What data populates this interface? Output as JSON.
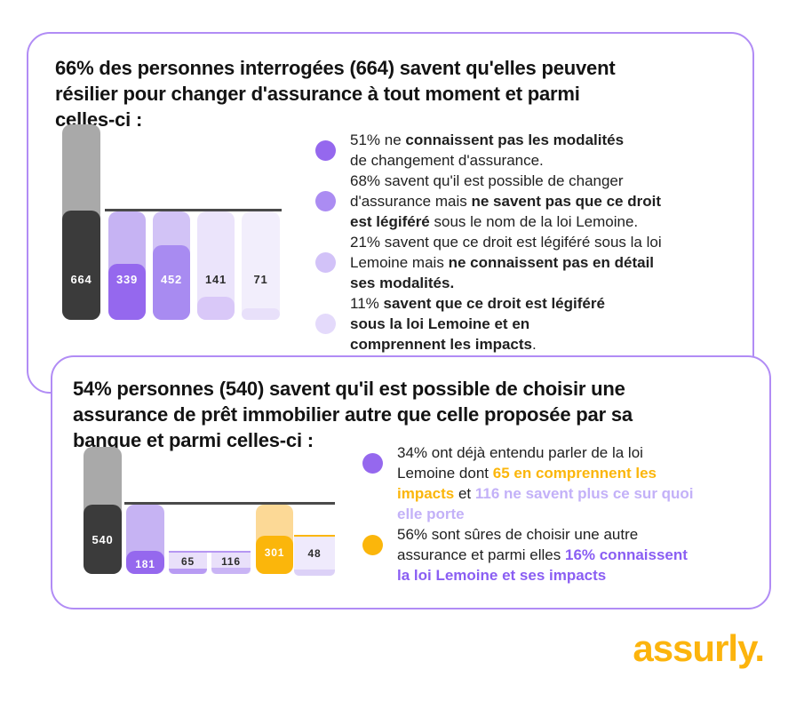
{
  "palette": {
    "card_border": "#b18cf5",
    "bar_dark": "#3b3b3b",
    "bar_gray": "#a9a9a9",
    "axis": "#4a4a4a",
    "purple_strong": "#9568ee",
    "purple_mid": "#a88bf1",
    "purple_soft": "#c6b3f3",
    "purple_soft2": "#d2c3f6",
    "purple_pale": "#ebe4fb",
    "purple_pale2": "#f2eefc",
    "strip_pale": "#d9c8f8",
    "strip_pale2": "#e8e0fa",
    "bracket_purple": "#b697f2",
    "subset_body": "#e9e0fa",
    "strip_65": "#b89bf3",
    "strip_116": "#c9b4f5",
    "body_48": "#efeafc",
    "strip_48": "#dcd1f7",
    "yellow": "#fbb60b",
    "yellow_light": "#fcd996",
    "text_orange": "#fbb60b",
    "text_lilac": "#c3b1f8",
    "text_purple": "#8a5ef3",
    "logo_yellow": "#fcb40d",
    "label_white": "#ffffff",
    "label_dark": "#2d2d2d"
  },
  "chart_data": [
    {
      "type": "bar",
      "title": "66% des personnes interrogées (664) savent qu'elles peuvent résilier pour changer d'assurance à tout moment et parmi celles-ci :",
      "categories": [
        "664 (66% savent résilier)",
        "339 (51%)",
        "452 (68%)",
        "141 (21%)",
        "71 (11%)"
      ],
      "values": [
        664,
        339,
        452,
        141,
        71
      ],
      "layout": "first bar overflows above the baseline (gray = remainder of all respondents); other bars are pale containers with saturated fills proportional to value",
      "grid": false,
      "legend": false
    },
    {
      "type": "bar",
      "title": "54% personnes (540) savent qu'il est possible de choisir une assurance de prêt immobilier autre que celle proposée par sa banque et parmi celles-ci :",
      "categories": [
        "540 (54%)",
        "181 (34%)",
        "65",
        "116",
        "301 (56%)",
        "48 (16%)"
      ],
      "values": [
        540,
        181,
        65,
        116,
        301,
        48
      ],
      "layout": "540 overflows above baseline; 65 and 116 are subsets of 181 (purple bracket); 48 is a subset of 301 (yellow bracket)",
      "grid": false,
      "legend": false
    }
  ],
  "card1": {
    "title": "66% des personnes interrogées (664) savent qu'elles peuvent\nrésilier pour changer d'assurance à tout moment et parmi\ncelles-ci :",
    "bullets": [
      {
        "dot": "#9568ee",
        "segments": [
          {
            "t": "51% ne "
          },
          {
            "t": "connaissent pas les modalités",
            "c": "b"
          },
          {
            "t": "\nde changement d'assurance."
          }
        ]
      },
      {
        "dot": "#ab8cf2",
        "segments": [
          {
            "t": "68% savent qu'il est possible de changer\nd'assurance mais "
          },
          {
            "t": "ne savent pas que ce droit\nest légiféré",
            "c": "b"
          },
          {
            "t": " sous le nom de la loi Lemoine."
          }
        ]
      },
      {
        "dot": "#d2c2f8",
        "segments": [
          {
            "t": "21% savent que ce droit est légiféré sous la loi\nLemoine mais "
          },
          {
            "t": "ne connaissent pas en détail\nses modalités.",
            "c": "b"
          }
        ]
      },
      {
        "dot": "#e4dafb",
        "segments": [
          {
            "t": "11% "
          },
          {
            "t": "savent que ce droit est légiféré\nsous la loi Lemoine et en\ncomprennent les impacts",
            "c": "b"
          },
          {
            "t": "."
          }
        ]
      }
    ]
  },
  "card2": {
    "title": "54% personnes (540) savent qu'il est possible de choisir une\nassurance de prêt immobilier autre que celle proposée par sa\nbanque et parmi celles-ci :",
    "bullets": [
      {
        "dot": "#9568ee",
        "segments": [
          {
            "t": "34% ont déjà entendu parler de la loi\nLemoine dont "
          },
          {
            "t": "65 en comprennent les\nimpacts",
            "c": "orange"
          },
          {
            "t": " et "
          },
          {
            "t": "116 ne savent plus ce sur quoi\nelle porte",
            "c": "lilac"
          }
        ]
      },
      {
        "dot": "#fbb60b",
        "segments": [
          {
            "t": "56% sont sûres de choisir une autre\nassurance et parmi elles "
          },
          {
            "t": "16% connaissent\nla loi Lemoine et ses impacts",
            "c": "purple"
          }
        ]
      }
    ]
  },
  "logo": {
    "text": "assurly."
  }
}
